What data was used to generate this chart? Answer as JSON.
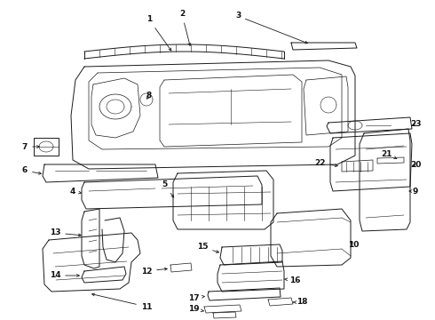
{
  "bg_color": "#ffffff",
  "line_color": "#1a1a1a",
  "label_fontsize": 6.5,
  "label_color": "#111111",
  "figsize": [
    4.9,
    3.6
  ],
  "dpi": 100
}
